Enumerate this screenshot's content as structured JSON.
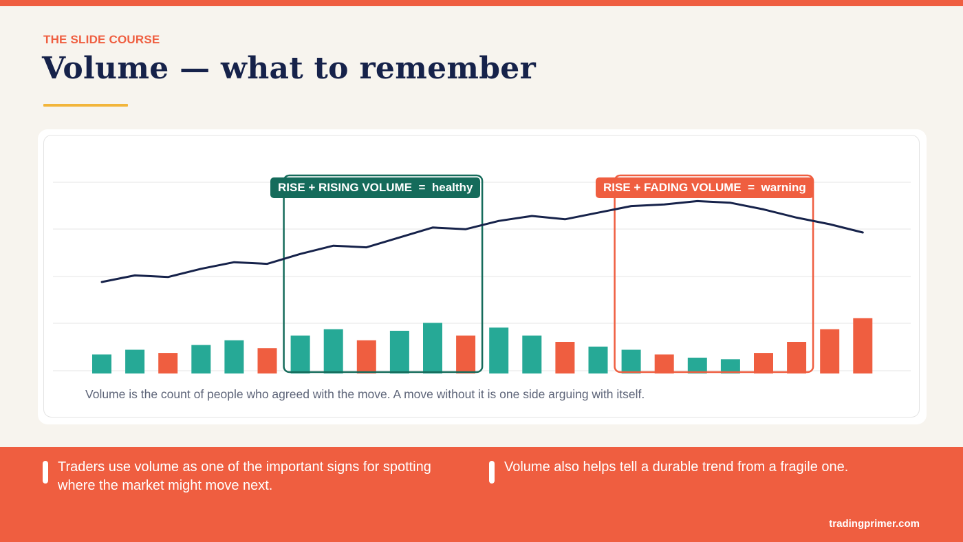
{
  "header": {
    "eyebrow": "THE SLIDE COURSE",
    "title": "Volume — what to remember"
  },
  "colors": {
    "accent": "#ef5e40",
    "navy": "#16224a",
    "teal": "#26a996",
    "dark_teal": "#156b5b",
    "underline": "#f2b53a",
    "price_line": "#16224a",
    "grid": "#e6e6e6"
  },
  "chart_data": {
    "type": "bar",
    "grid": true,
    "price_series": [
      20,
      24,
      23,
      28,
      32,
      31,
      37,
      42,
      41,
      47,
      53,
      52,
      57,
      60,
      58,
      62,
      66,
      67,
      69,
      68,
      64,
      59,
      55,
      50
    ],
    "volume_series": [
      12,
      15,
      13,
      18,
      21,
      16,
      24,
      28,
      21,
      27,
      32,
      24,
      29,
      24,
      20,
      17,
      15,
      12,
      10,
      9,
      13,
      20,
      28,
      35
    ],
    "volume_direction": [
      "up",
      "up",
      "down",
      "up",
      "up",
      "down",
      "up",
      "up",
      "down",
      "up",
      "up",
      "down",
      "up",
      "up",
      "down",
      "up",
      "up",
      "down",
      "up",
      "up",
      "down",
      "down",
      "down",
      "down"
    ],
    "annotations": [
      {
        "label": "RISE + RISING VOLUME  =  healthy",
        "from_bar": 6,
        "to_bar": 11,
        "color": "#156b5b"
      },
      {
        "label": "RISE + FADING VOLUME  =  warning",
        "from_bar": 16,
        "to_bar": 21,
        "color": "#ef5e40"
      }
    ],
    "caption": "Volume is the count of people who agreed with the move. A move without it is one side arguing with itself."
  },
  "footer": {
    "bullets": [
      "Traders use volume as one of the important signs for spotting where the market might move next.",
      "Volume also helps tell a durable trend from a fragile one."
    ],
    "site": "tradingprimer.com"
  }
}
